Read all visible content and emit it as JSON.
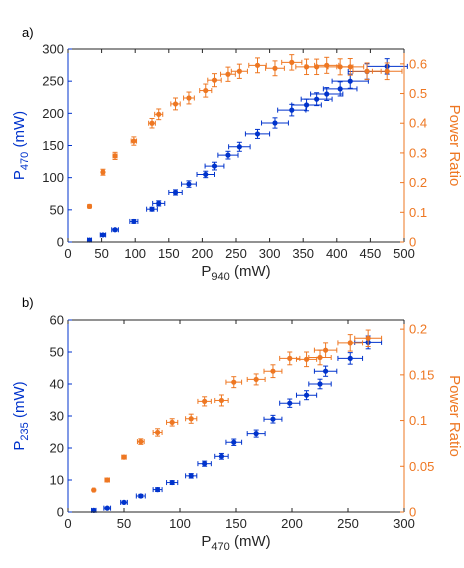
{
  "colors": {
    "left": "#0033cc",
    "right": "#ee7722",
    "axis": "#262626"
  },
  "chart_data": [
    {
      "type": "scatter",
      "panel_label": "a)",
      "xlabel_main": "P",
      "xlabel_sub": "940",
      "xlabel_unit": " (mW)",
      "ylabel_main": "P",
      "ylabel_sub": "470",
      "ylabel_unit": " (mW)",
      "y2label": "Power Ratio",
      "xlim": [
        0,
        500
      ],
      "xticks": [
        0,
        50,
        100,
        150,
        200,
        250,
        300,
        350,
        400,
        450,
        500
      ],
      "ylim": [
        0,
        300
      ],
      "yticks": [
        0,
        50,
        100,
        150,
        200,
        250,
        300
      ],
      "y2lim": [
        0,
        0.65
      ],
      "y2ticks": [
        0,
        0.1,
        0.2,
        0.3,
        0.4,
        0.5,
        0.6
      ],
      "series": [
        {
          "axis": "left",
          "color": "#0033cc",
          "x": [
            32,
            52,
            70,
            98,
            125,
            135,
            160,
            180,
            205,
            218,
            238,
            255,
            282,
            308,
            333,
            355,
            370,
            385,
            405,
            420,
            445,
            475
          ],
          "y": [
            3,
            11,
            19,
            32,
            51,
            60,
            77,
            90,
            105,
            118,
            135,
            148,
            168,
            185,
            205,
            213,
            222,
            230,
            238,
            250,
            265,
            273
          ],
          "xerr": [
            3,
            4,
            5,
            6,
            8,
            9,
            10,
            11,
            13,
            14,
            15,
            16,
            18,
            20,
            21,
            22,
            23,
            24,
            25,
            27,
            28,
            30
          ],
          "yerr": [
            1,
            2,
            2,
            3,
            3,
            4,
            4,
            5,
            5,
            6,
            6,
            7,
            7,
            8,
            9,
            9,
            10,
            10,
            11,
            11,
            12,
            12
          ]
        },
        {
          "axis": "right",
          "color": "#ee7722",
          "x": [
            32,
            52,
            70,
            98,
            125,
            135,
            160,
            180,
            205,
            218,
            238,
            255,
            282,
            308,
            333,
            355,
            370,
            385,
            405,
            420,
            445,
            475
          ],
          "y": [
            0.12,
            0.235,
            0.29,
            0.34,
            0.4,
            0.43,
            0.465,
            0.485,
            0.51,
            0.545,
            0.565,
            0.575,
            0.595,
            0.585,
            0.605,
            0.59,
            0.59,
            0.595,
            0.59,
            0.59,
            0.575,
            0.575
          ],
          "xerr": [
            2,
            2,
            3,
            4,
            5,
            6,
            7,
            8,
            9,
            10,
            11,
            12,
            13,
            14,
            15,
            16,
            17,
            18,
            19,
            20,
            21,
            22
          ],
          "yerr": [
            0.005,
            0.01,
            0.012,
            0.014,
            0.016,
            0.018,
            0.02,
            0.02,
            0.022,
            0.022,
            0.024,
            0.024,
            0.025,
            0.025,
            0.026,
            0.026,
            0.026,
            0.027,
            0.027,
            0.028,
            0.028,
            0.028
          ]
        }
      ]
    },
    {
      "type": "scatter",
      "panel_label": "b)",
      "xlabel_main": "P",
      "xlabel_sub": "470",
      "xlabel_unit": " (mW)",
      "ylabel_main": "P",
      "ylabel_sub": "235",
      "ylabel_unit": " (mW)",
      "y2label": "Power Ratio",
      "xlim": [
        0,
        300
      ],
      "xticks": [
        0,
        50,
        100,
        150,
        200,
        250,
        300
      ],
      "ylim": [
        0,
        60
      ],
      "yticks": [
        0,
        10,
        20,
        30,
        40,
        50,
        60
      ],
      "y2lim": [
        0,
        0.21
      ],
      "y2ticks": [
        0,
        0.05,
        0.1,
        0.15,
        0.2
      ],
      "y2ticklabels": [
        "0",
        "0.05",
        "0.1",
        "0.15",
        "0.2"
      ],
      "series": [
        {
          "axis": "left",
          "color": "#0033cc",
          "x": [
            23,
            35,
            50,
            65,
            80,
            93,
            110,
            122,
            137,
            148,
            168,
            183,
            198,
            213,
            225,
            230,
            252,
            268
          ],
          "y": [
            0.5,
            1.2,
            3,
            5,
            7,
            9.2,
            11.3,
            15.1,
            17.4,
            21.8,
            24.5,
            29,
            34,
            36.5,
            40,
            44,
            48,
            53
          ],
          "xerr": [
            2,
            3,
            3,
            4,
            4,
            5,
            5,
            6,
            6,
            7,
            8,
            8,
            9,
            9,
            10,
            10,
            11,
            12
          ],
          "yerr": [
            0.2,
            0.3,
            0.4,
            0.5,
            0.6,
            0.6,
            0.7,
            0.8,
            0.9,
            1.0,
            1.1,
            1.2,
            1.3,
            1.4,
            1.5,
            1.6,
            1.8,
            2.0
          ]
        },
        {
          "axis": "right",
          "color": "#ee7722",
          "x": [
            23,
            35,
            50,
            65,
            80,
            93,
            110,
            122,
            137,
            148,
            168,
            183,
            198,
            213,
            225,
            230,
            252,
            268
          ],
          "y": [
            0.024,
            0.035,
            0.06,
            0.077,
            0.087,
            0.098,
            0.102,
            0.121,
            0.122,
            0.142,
            0.145,
            0.154,
            0.168,
            0.167,
            0.169,
            0.177,
            0.185,
            0.19
          ],
          "xerr": [
            1,
            2,
            2,
            3,
            4,
            5,
            5,
            6,
            6,
            7,
            8,
            8,
            9,
            9,
            10,
            10,
            11,
            12
          ],
          "yerr": [
            0.001,
            0.002,
            0.002,
            0.003,
            0.004,
            0.004,
            0.005,
            0.005,
            0.006,
            0.006,
            0.006,
            0.007,
            0.007,
            0.008,
            0.008,
            0.008,
            0.009,
            0.009
          ]
        }
      ]
    }
  ]
}
